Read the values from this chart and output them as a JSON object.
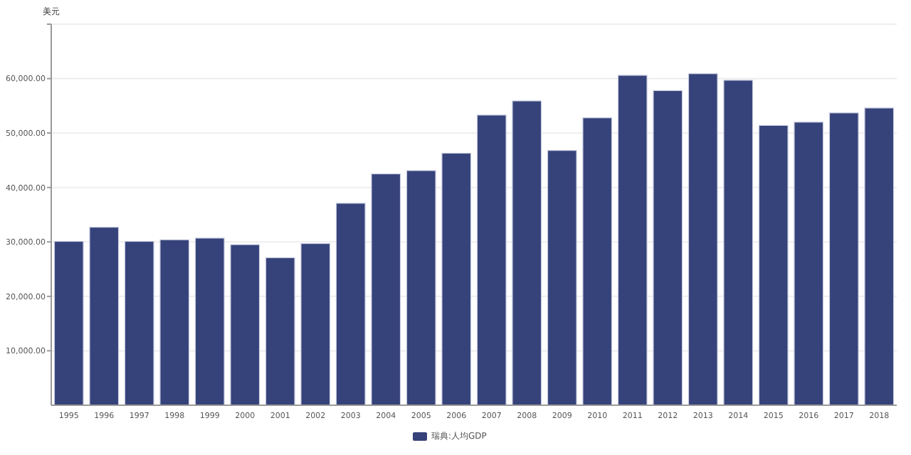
{
  "chart_data": {
    "type": "bar",
    "ylabel": "美元",
    "categories": [
      "1995",
      "1996",
      "1997",
      "1998",
      "1999",
      "2000",
      "2001",
      "2002",
      "2003",
      "2004",
      "2005",
      "2006",
      "2007",
      "2008",
      "2009",
      "2010",
      "2011",
      "2012",
      "2013",
      "2014",
      "2015",
      "2016",
      "2017",
      "2018"
    ],
    "series": [
      {
        "name": "瑞典:人均GDP",
        "color": "#36427a",
        "values": [
          30100,
          32700,
          30100,
          30400,
          30700,
          29500,
          27100,
          29700,
          37100,
          42500,
          43100,
          46300,
          53300,
          55900,
          46800,
          52800,
          60600,
          57800,
          60900,
          59700,
          51400,
          52000,
          53700,
          54600
        ]
      }
    ],
    "ylim": [
      0,
      70000
    ],
    "yticks": [
      {
        "value": 10000,
        "label": "10,000.00"
      },
      {
        "value": 20000,
        "label": "20,000.00"
      },
      {
        "value": 30000,
        "label": "30,000.00"
      },
      {
        "value": 40000,
        "label": "40,000.00"
      },
      {
        "value": 50000,
        "label": "50,000.00"
      },
      {
        "value": 60000,
        "label": "60,000.00"
      },
      {
        "value": 70000,
        "label": null
      }
    ],
    "grid": "y",
    "legend": "bottom"
  }
}
